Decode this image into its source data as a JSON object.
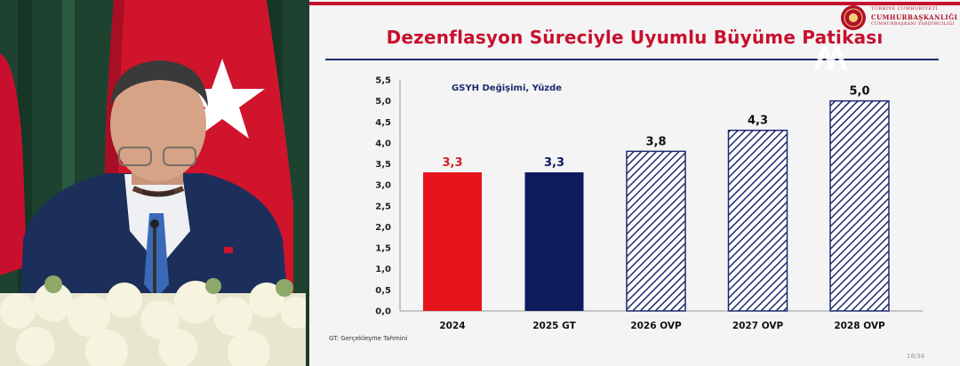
{
  "slide": {
    "title": "Dezenflasyon Süreciyle Uyumlu Büyüme Patikası",
    "organization": {
      "line1": "TÜRKİYE CUMHURİYETİ",
      "line2": "CUMHURBAŞKANLIĞI",
      "line3": "CUMHURBAŞKANI YARDIMCILIĞI"
    },
    "footnote": "GT: Gerçekleşme Tahmini",
    "page": "18/34",
    "watermark": "AA"
  },
  "chart_data": {
    "type": "bar",
    "subtitle": "GSYH Değişimi, Yüzde",
    "categories": [
      "2024",
      "2025 GT",
      "2026 OVP",
      "2027 OVP",
      "2028 OVP"
    ],
    "values": [
      3.3,
      3.3,
      3.8,
      4.3,
      5.0
    ],
    "value_labels": [
      "3,3",
      "3,3",
      "3,8",
      "4,3",
      "5,0"
    ],
    "ylim": [
      0,
      5.5
    ],
    "yticks": [
      "0,0",
      "0,5",
      "1,0",
      "1,5",
      "2,0",
      "2,5",
      "3,0",
      "3,5",
      "4,0",
      "4,5",
      "5,0",
      "5,5"
    ],
    "bar_styles": [
      "solid",
      "solid",
      "hatched",
      "hatched",
      "hatched"
    ],
    "colors": [
      "#e8141b",
      "#0d1a5c",
      "#1f2a6e",
      "#1f2a6e",
      "#1f2a6e"
    ],
    "label_colors": [
      "#d21f26",
      "#0d1a5c",
      "#111111",
      "#111111",
      "#111111"
    ],
    "grid": false,
    "legend": "none"
  }
}
